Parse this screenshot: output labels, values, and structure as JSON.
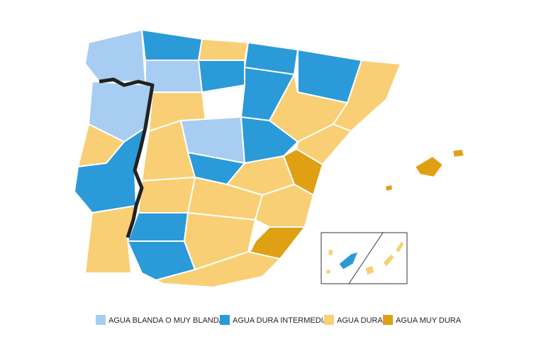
{
  "legend": [
    {
      "label": "AGUA BLANDA O MUY BLANDA",
      "color": "#a8cdf2"
    },
    {
      "label": "AGUA DURA INTERMEDIA",
      "color": "#2b9ad8"
    },
    {
      "label": "AGUA DURA",
      "color": "#f8cf74"
    },
    {
      "label": "AGUA MUY DURA",
      "color": "#dfa014"
    }
  ]
}
